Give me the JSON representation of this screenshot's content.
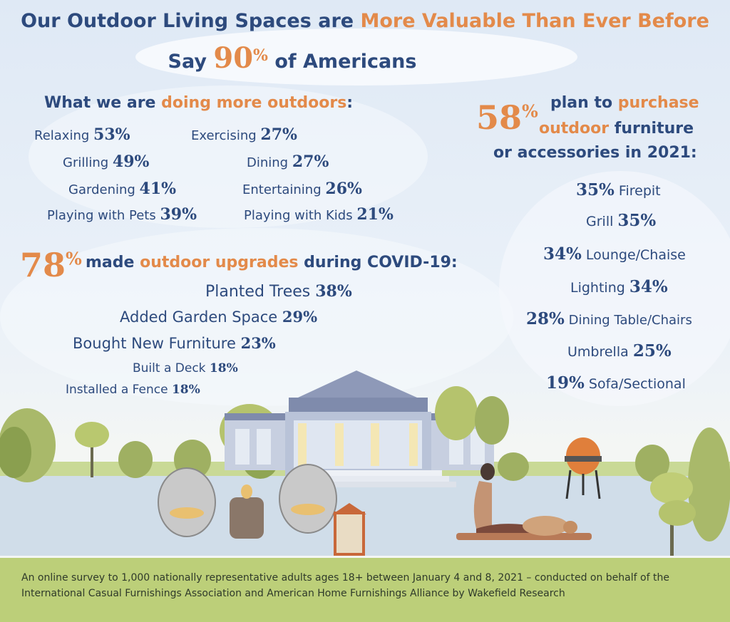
{
  "header": {
    "title_prefix": "Our Outdoor Living Spaces are ",
    "title_highlight": "More Valuable Than Ever Before",
    "subtitle_prefix": "Say ",
    "subtitle_number": "90",
    "subtitle_percent": "%",
    "subtitle_suffix": " of Americans"
  },
  "activities": {
    "heading_prefix": "What we are ",
    "heading_highlight": "doing more outdoors",
    "heading_suffix": ":",
    "items": [
      {
        "label": "Relaxing",
        "value": "53%"
      },
      {
        "label": "Exercising",
        "value": "27%"
      },
      {
        "label": "Grilling",
        "value": "49%"
      },
      {
        "label": "Dining",
        "value": "27%"
      },
      {
        "label": "Gardening",
        "value": "41%"
      },
      {
        "label": "Entertaining",
        "value": "26%"
      },
      {
        "label": "Playing with Pets",
        "value": "39%"
      },
      {
        "label": "Playing with Kids",
        "value": "21%"
      }
    ]
  },
  "upgrades": {
    "stat_number": "78",
    "stat_percent": "%",
    "heading_prefix": " made ",
    "heading_highlight": "outdoor upgrades",
    "heading_suffix": " during COVID-19:",
    "items": [
      {
        "label": "Planted Trees",
        "value": "38%"
      },
      {
        "label": "Added Garden Space",
        "value": "29%"
      },
      {
        "label": "Bought New Furniture",
        "value": "23%"
      },
      {
        "label": "Built a Deck",
        "value": "18%"
      },
      {
        "label": "Installed a Fence",
        "value": "18%"
      }
    ]
  },
  "purchases": {
    "stat_number": "58",
    "stat_percent": "%",
    "line1_prefix": "plan to ",
    "line1_highlight": "purchase",
    "line2_highlight": "outdoor",
    "line2_suffix": " furniture",
    "line3": "or accessories in 2021:",
    "items": [
      {
        "label": "Firepit",
        "value": "35%",
        "value_first": true
      },
      {
        "label": "Grill",
        "value": "35%",
        "value_first": false
      },
      {
        "label": "Lounge/Chaise",
        "value": "34%",
        "value_first": true
      },
      {
        "label": "Lighting",
        "value": "34%",
        "value_first": false
      },
      {
        "label": "Dining Table/Chairs",
        "value": "28%",
        "value_first": true
      },
      {
        "label": "Umbrella",
        "value": "25%",
        "value_first": false
      },
      {
        "label": "Sofa/Sectional",
        "value": "19%",
        "value_first": true
      }
    ]
  },
  "footer": {
    "line1": "An online survey to 1,000 nationally representative adults ages 18+ between January 4 and 8, 2021 – conducted on behalf of the",
    "line2": "International Casual Furnishings Association and American Home Furnishings Alliance by Wakefield Research"
  },
  "colors": {
    "navy": "#2d4a7d",
    "orange": "#e38a4a",
    "footer_green": "#bccf79"
  }
}
